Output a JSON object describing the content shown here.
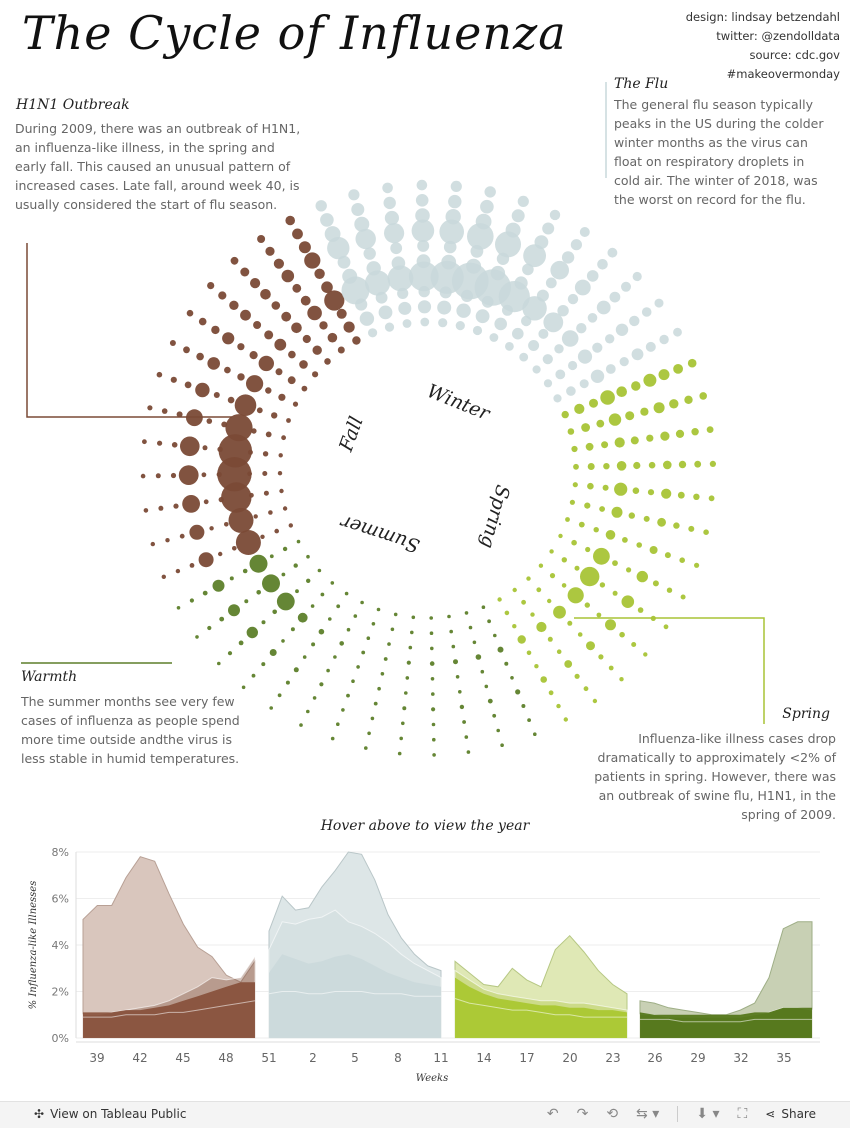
{
  "title": "The Cycle of Influenza",
  "credits": [
    "design: lindsay betzendahl",
    "twitter: @zendolldata",
    "source: cdc.gov",
    "#makeovermonday"
  ],
  "annotations": {
    "h1n1": {
      "title": "H1N1 Outbreak",
      "text": "During 2009, there was an outbreak of H1N1, an influenza-like illness, in the spring and early fall. This caused an unusual pattern of increased cases. Late fall, around week 40, is usually considered the start of flu season."
    },
    "flu": {
      "title": "The Flu",
      "text": "The general flu season typically peaks in the US during the colder winter months as the virus can float on respiratory droplets in cold air. The winter of 2018, was the worst on record for the flu."
    },
    "warmth": {
      "title": "Warmth",
      "text": "The summer months see very few cases of influenza as people spend more time outside andthe virus is less stable in humid temperatures."
    },
    "spring": {
      "title": "Spring",
      "text": "Influenza-like illness cases drop dramatically to approximately <2% of patients in spring. However, there was an outbreak of swine flu, H1N1, in the spring of 2009."
    }
  },
  "season_labels": [
    "Winter",
    "Spring",
    "Summer",
    "Fall"
  ],
  "area_title": "Hover above to view the year",
  "toolbar": {
    "view_label": "View on Tableau Public",
    "share_label": "Share"
  },
  "colors": {
    "fall": "#7a4a36",
    "winter": "#c9d8da",
    "spring": "#a8c436",
    "summer": "#5d7f2a"
  },
  "chart_data": [
    {
      "type": "scatter",
      "name": "radial-weekly-ili",
      "description_axis": "angle = week of year, radius = year, size = % ILI",
      "week_order": [
        39,
        40,
        41,
        42,
        43,
        44,
        45,
        46,
        47,
        48,
        49,
        50,
        51,
        52,
        1,
        2,
        3,
        4,
        5,
        6,
        7,
        8,
        9,
        10,
        11,
        12,
        13,
        14,
        15,
        16,
        17,
        18,
        19,
        20,
        21,
        22,
        23,
        24,
        25,
        26,
        27,
        28,
        29,
        30,
        31,
        32,
        33,
        34,
        35,
        36,
        37,
        38
      ],
      "seasons": [
        {
          "name": "Fall",
          "weeks": [
            39,
            40,
            41,
            42,
            43,
            44,
            45,
            46,
            47,
            48,
            49,
            50,
            51
          ]
        },
        {
          "name": "Winter",
          "weeks": [
            52,
            1,
            2,
            3,
            4,
            5,
            6,
            7,
            8,
            9,
            10,
            11,
            12
          ]
        },
        {
          "name": "Spring",
          "weeks": [
            13,
            14,
            15,
            16,
            17,
            18,
            19,
            20,
            21,
            22,
            23,
            24,
            25
          ]
        },
        {
          "name": "Summer",
          "weeks": [
            26,
            27,
            28,
            29,
            30,
            31,
            32,
            33,
            34,
            35,
            36,
            37,
            38
          ]
        }
      ],
      "rings": 10,
      "size_range": [
        1,
        8
      ]
    },
    {
      "type": "area",
      "name": "weekly-ili-by-season",
      "ylabel": "% Influenza-like Illnesses",
      "xlabel": "Weeks",
      "ylim": [
        0,
        8
      ],
      "yticks": [
        "0%",
        "2%",
        "4%",
        "6%",
        "8%"
      ],
      "xticks": [
        "39",
        "42",
        "45",
        "48",
        "51",
        "2",
        "5",
        "8",
        "11",
        "14",
        "17",
        "20",
        "23",
        "26",
        "29",
        "32",
        "35"
      ],
      "panels": [
        {
          "season": "Fall",
          "weeks": [
            38,
            39,
            40,
            41,
            42,
            43,
            44,
            45,
            46,
            47,
            48,
            49,
            50
          ],
          "highlight": [
            5.1,
            5.7,
            5.7,
            6.9,
            7.8,
            7.6,
            6.2,
            4.9,
            3.9,
            3.5,
            2.7,
            2.4,
            3.3
          ],
          "typical": [
            1.1,
            1.1,
            1.1,
            1.2,
            1.2,
            1.3,
            1.4,
            1.6,
            1.8,
            2.0,
            2.2,
            2.4,
            2.4
          ],
          "min": [
            0.9,
            0.9,
            0.9,
            1.0,
            1.0,
            1.0,
            1.1,
            1.1,
            1.2,
            1.3,
            1.4,
            1.5,
            1.6
          ],
          "extra": [
            1.0,
            1.0,
            1.1,
            1.2,
            1.3,
            1.4,
            1.6,
            1.9,
            2.2,
            2.6,
            2.5,
            2.6,
            3.5
          ]
        },
        {
          "season": "Winter",
          "weeks": [
            51,
            52,
            1,
            2,
            3,
            4,
            5,
            6,
            7,
            8,
            9,
            10,
            11,
            12
          ],
          "highlight": [
            4.6,
            6.1,
            5.5,
            5.6,
            6.5,
            7.2,
            8.0,
            7.9,
            6.8,
            5.3,
            4.3,
            3.6,
            3.1,
            2.9
          ],
          "typical": [
            2.8,
            3.6,
            3.4,
            3.2,
            3.3,
            3.5,
            3.6,
            3.4,
            3.1,
            2.8,
            2.6,
            2.4,
            2.3,
            2.2
          ],
          "min": [
            1.9,
            2.0,
            2.0,
            1.9,
            1.9,
            2.0,
            2.0,
            2.0,
            1.9,
            1.9,
            1.9,
            1.8,
            1.8,
            1.8
          ],
          "extra": [
            3.8,
            5.0,
            4.9,
            5.1,
            5.2,
            5.5,
            5.0,
            4.8,
            4.5,
            4.1,
            3.6,
            3.2,
            2.9,
            2.6
          ]
        },
        {
          "season": "Spring",
          "weeks": [
            13,
            14,
            15,
            16,
            17,
            18,
            19,
            20,
            21,
            22,
            23,
            24,
            25
          ],
          "highlight": [
            3.3,
            2.8,
            2.3,
            2.2,
            3.0,
            2.5,
            2.2,
            3.8,
            4.4,
            3.7,
            2.9,
            2.3,
            1.9
          ],
          "typical": [
            2.6,
            2.2,
            1.9,
            1.7,
            1.6,
            1.5,
            1.4,
            1.4,
            1.3,
            1.3,
            1.2,
            1.2,
            1.1
          ],
          "min": [
            1.7,
            1.5,
            1.4,
            1.3,
            1.2,
            1.2,
            1.1,
            1.0,
            1.0,
            0.9,
            0.9,
            0.9,
            0.9
          ],
          "extra": [
            2.9,
            2.5,
            2.1,
            1.9,
            1.8,
            1.7,
            1.6,
            1.6,
            1.5,
            1.5,
            1.4,
            1.3,
            1.2
          ]
        },
        {
          "season": "Summer",
          "weeks": [
            26,
            27,
            28,
            29,
            30,
            31,
            32,
            33,
            34,
            35,
            36,
            37,
            38
          ],
          "highlight": [
            1.6,
            1.5,
            1.3,
            1.2,
            1.1,
            1.0,
            1.0,
            1.2,
            1.5,
            2.6,
            4.7,
            5.0,
            5.0
          ],
          "typical": [
            1.1,
            1.0,
            1.0,
            1.0,
            1.0,
            1.0,
            1.0,
            1.0,
            1.1,
            1.1,
            1.3,
            1.3,
            1.3
          ],
          "min": [
            0.8,
            0.8,
            0.8,
            0.7,
            0.7,
            0.7,
            0.7,
            0.7,
            0.8,
            0.8,
            0.8,
            0.8,
            0.8
          ],
          "extra": [
            1.0,
            1.0,
            0.9,
            0.9,
            0.9,
            0.9,
            0.9,
            0.9,
            1.0,
            1.1,
            1.3,
            1.3,
            1.2
          ]
        }
      ]
    }
  ]
}
